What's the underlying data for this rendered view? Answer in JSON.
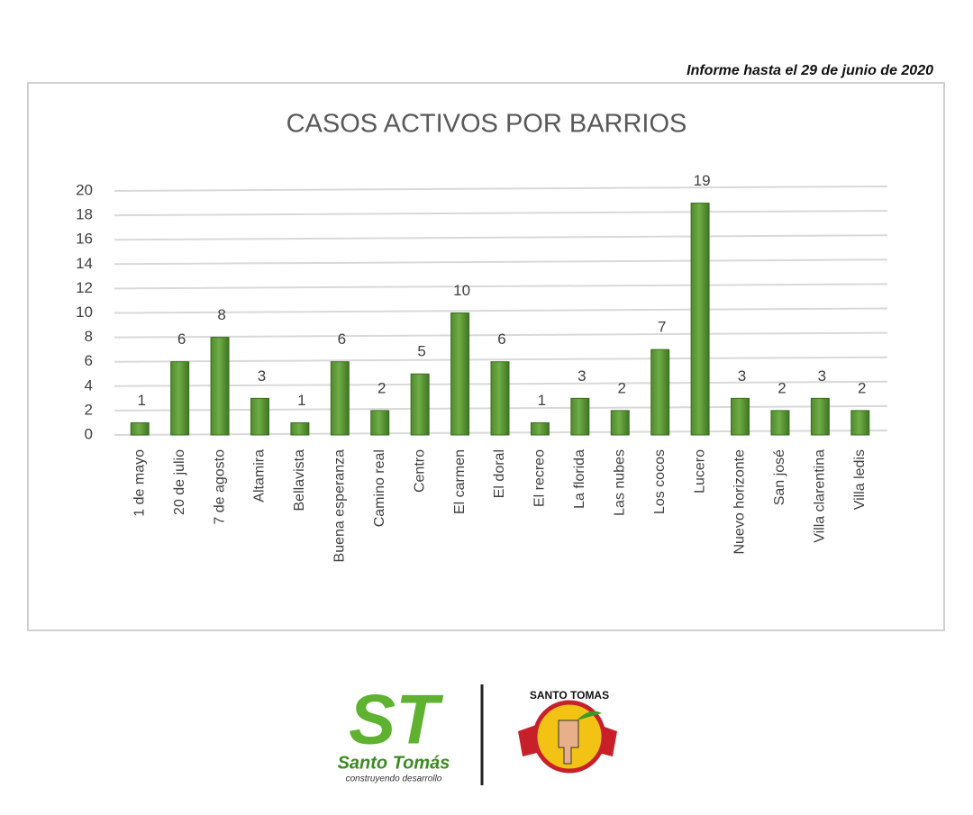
{
  "report_note": "Informe hasta el 29 de junio de 2020",
  "chart_data": {
    "type": "bar",
    "title": "CASOS ACTIVOS POR BARRIOS",
    "categories": [
      "1 de mayo",
      "20 de julio",
      "7 de agosto",
      "Altamira",
      "Bellavista",
      "Buena esperanza",
      "Camino real",
      "Centro",
      "El carmen",
      "El doral",
      "El recreo",
      "La florida",
      "Las nubes",
      "Los cocos",
      "Lucero",
      "Nuevo horizonte",
      "San josé",
      "Villa clarentina",
      "Villa ledis"
    ],
    "values": [
      1,
      6,
      8,
      3,
      1,
      6,
      2,
      5,
      10,
      6,
      1,
      3,
      2,
      7,
      19,
      3,
      2,
      3,
      2
    ],
    "color": "#70ad47",
    "ylim": [
      0,
      20
    ],
    "yticks": [
      0,
      2,
      4,
      6,
      8,
      10,
      12,
      14,
      16,
      18,
      20
    ],
    "grid": true
  },
  "logos": {
    "left_mark": "ST",
    "left_name": "Santo Tomás",
    "left_slogan": "construyendo desarrollo",
    "right_name": "SANTO TOMAS"
  }
}
